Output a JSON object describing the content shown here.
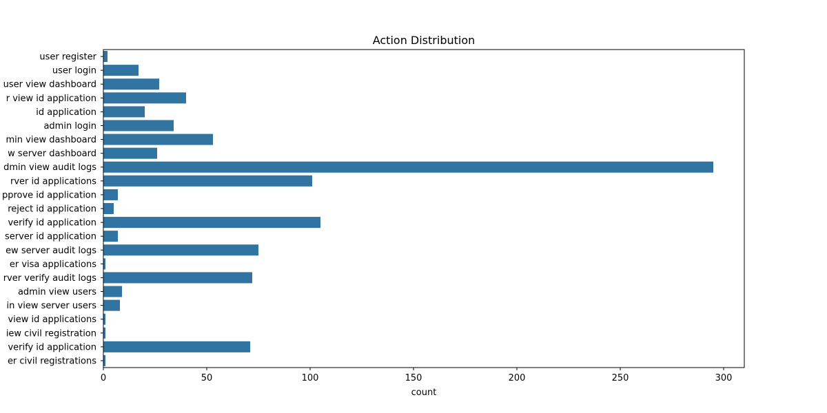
{
  "chart_data": {
    "type": "bar",
    "orientation": "horizontal",
    "title": "Action Distribution",
    "xlabel": "count",
    "ylabel": "",
    "xlim": [
      0,
      310
    ],
    "xticks": [
      0,
      50,
      100,
      150,
      200,
      250,
      300
    ],
    "grid": false,
    "bar_color": "#3274a1",
    "categories": [
      "user register",
      "user login",
      "user view dashboard",
      "r view id application",
      "id application",
      "admin login",
      "min view dashboard",
      "w server dashboard",
      "dmin view audit logs",
      "rver id applications",
      "pprove id application",
      "reject id application",
      "verify id application",
      "server id application",
      "ew server audit logs",
      "er visa applications",
      "rver verify audit logs",
      "admin view users",
      "in view server users",
      "view id applications",
      "iew civil registration",
      "verify id application",
      "er civil registrations"
    ],
    "values": [
      2,
      17,
      27,
      40,
      20,
      34,
      53,
      26,
      295,
      101,
      7,
      5,
      105,
      7,
      75,
      1,
      72,
      9,
      8,
      1,
      1,
      71,
      1
    ]
  }
}
